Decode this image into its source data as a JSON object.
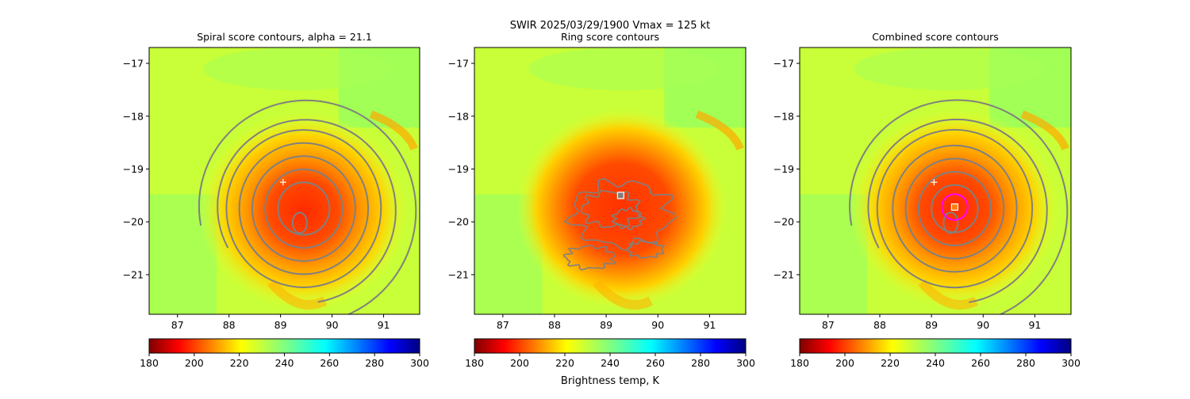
{
  "figure": {
    "suptitle_line1": "SWIR  2025/03/29/1900    Vmax = 125 kt",
    "colorbar_label": "Brightness temp, K"
  },
  "chart_data": [
    {
      "type": "heatmap",
      "title": "Spiral score contours, alpha = 21.1",
      "xlim": [
        86.45,
        91.7
      ],
      "ylim": [
        -21.75,
        -16.7
      ],
      "xticks": [
        "87",
        "88",
        "89",
        "90",
        "91"
      ],
      "yticks": [
        "−17",
        "−18",
        "−19",
        "−20",
        "−21"
      ],
      "xtick_values": [
        87,
        88,
        89,
        90,
        91
      ],
      "ytick_values": [
        -17,
        -18,
        -19,
        -20,
        -21
      ],
      "storm_center": {
        "lon": 89.45,
        "lat": -19.8
      },
      "contours": {
        "kind": "spiral",
        "center": {
          "lon": 89.45,
          "lat": -19.75
        },
        "radii_deg": [
          0.5,
          0.75,
          1.0,
          1.25,
          1.5,
          1.8,
          2.2
        ]
      },
      "markers": [
        {
          "shape": "plus",
          "lon": 89.05,
          "lat": -19.25
        }
      ],
      "colorbar": {
        "ticks": [
          "180",
          "200",
          "220",
          "240",
          "260",
          "280",
          "300"
        ],
        "range": [
          180,
          300
        ]
      }
    },
    {
      "type": "heatmap",
      "title": "Ring score contours",
      "xlim": [
        86.45,
        91.7
      ],
      "ylim": [
        -21.75,
        -16.7
      ],
      "xticks": [
        "87",
        "88",
        "89",
        "90",
        "91"
      ],
      "yticks": [
        "−17",
        "−18",
        "−19",
        "−20",
        "−21"
      ],
      "xtick_values": [
        87,
        88,
        89,
        90,
        91
      ],
      "ytick_values": [
        -17,
        -18,
        -19,
        -20,
        -21
      ],
      "storm_center": {
        "lon": 89.3,
        "lat": -19.75
      },
      "contours": {
        "kind": "ring",
        "center": {
          "lon": 89.3,
          "lat": -19.85
        }
      },
      "markers": [
        {
          "shape": "square",
          "lon": 89.28,
          "lat": -19.5
        }
      ],
      "colorbar": {
        "ticks": [
          "180",
          "200",
          "220",
          "240",
          "260",
          "280",
          "300"
        ],
        "range": [
          180,
          300
        ]
      }
    },
    {
      "type": "heatmap",
      "title": "Combined score contours",
      "xlim": [
        86.45,
        91.7
      ],
      "ylim": [
        -21.75,
        -16.7
      ],
      "xticks": [
        "87",
        "88",
        "89",
        "90",
        "91"
      ],
      "yticks": [
        "−17",
        "−18",
        "−19",
        "−20",
        "−21"
      ],
      "xtick_values": [
        87,
        88,
        89,
        90,
        91
      ],
      "ytick_values": [
        -17,
        -18,
        -19,
        -20,
        -21
      ],
      "storm_center": {
        "lon": 89.45,
        "lat": -19.75
      },
      "contours": {
        "kind": "spiral",
        "center": {
          "lon": 89.45,
          "lat": -19.75
        },
        "radii_deg": [
          0.45,
          0.7,
          0.95,
          1.2,
          1.5,
          1.8,
          2.2
        ]
      },
      "markers": [
        {
          "shape": "plus",
          "lon": 89.05,
          "lat": -19.25
        },
        {
          "shape": "circle",
          "lon": 89.45,
          "lat": -19.72,
          "radius_deg": 0.25
        },
        {
          "shape": "square",
          "lon": 89.45,
          "lat": -19.72
        }
      ],
      "colorbar": {
        "ticks": [
          "180",
          "200",
          "220",
          "240",
          "260",
          "280",
          "300"
        ],
        "range": [
          180,
          300
        ]
      }
    }
  ],
  "colors": {
    "contour": "#808080",
    "plus_marker": "#ffffff",
    "square_outline_ring": "#ffffff",
    "square_fill_ring": "#808080",
    "square_outline_combined": "#ffffff",
    "square_fill_combined": "#ff7f0e",
    "circle_marker": "#ff00ff"
  }
}
